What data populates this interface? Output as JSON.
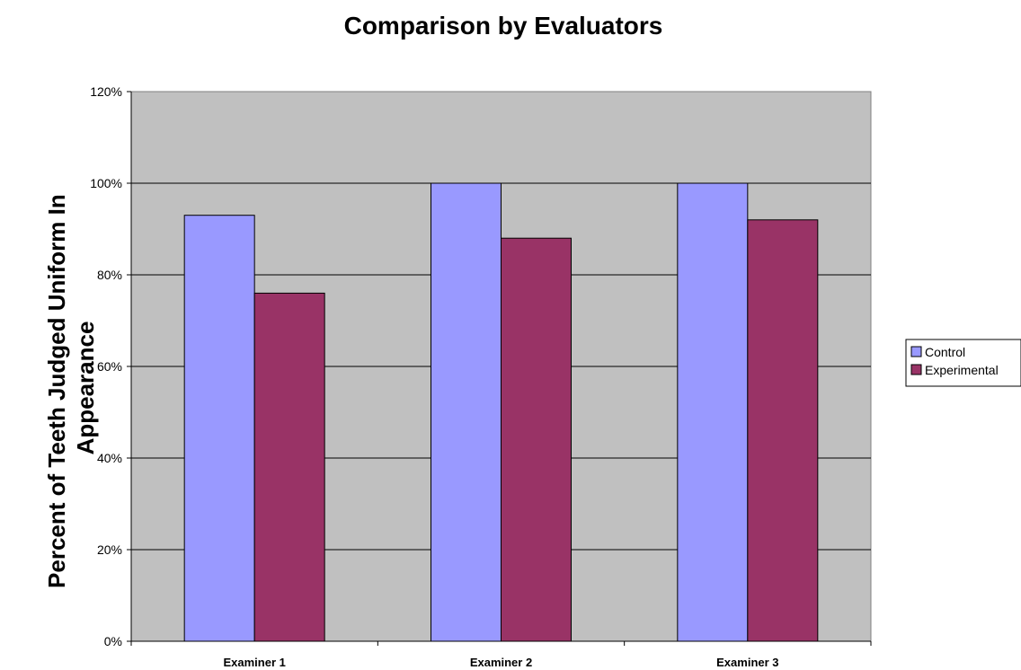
{
  "chart_data": {
    "type": "bar",
    "title": "Comparison by Evaluators",
    "xlabel": "",
    "ylabel": "Percent of Teeth Judged Uniform In Appearance",
    "ylim": [
      0,
      1.2
    ],
    "y_ticks": [
      0,
      0.2,
      0.4,
      0.6,
      0.8,
      1.0,
      1.2
    ],
    "y_tick_labels": [
      "0%",
      "20%",
      "40%",
      "60%",
      "80%",
      "100%",
      "120%"
    ],
    "categories": [
      "Examiner 1",
      "Examiner 2",
      "Examiner 3"
    ],
    "series": [
      {
        "name": "Control",
        "values": [
          0.93,
          1.0,
          1.0
        ],
        "color": "#9999ff"
      },
      {
        "name": "Experimental",
        "values": [
          0.76,
          0.88,
          0.92
        ],
        "color": "#993366"
      }
    ],
    "grid": true,
    "plot_background": "#c0c0c0",
    "legend": "right"
  }
}
